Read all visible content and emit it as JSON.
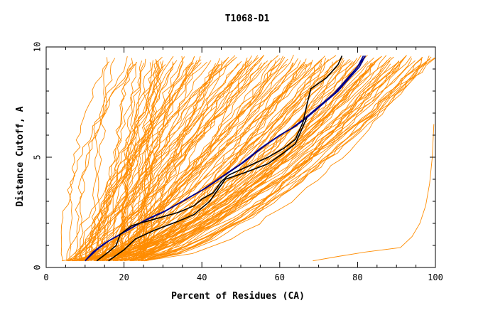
{
  "chart_data": {
    "type": "line",
    "title": "T1068-D1",
    "xlabel": "Percent of Residues (CA)",
    "ylabel": "Distance Cutoff, A",
    "xlim": [
      0,
      100
    ],
    "ylim": [
      0,
      10
    ],
    "x_ticks": [
      0,
      20,
      40,
      60,
      80,
      100
    ],
    "y_ticks": [
      0,
      5,
      10
    ],
    "x_tick_labels": [
      "0",
      "20",
      "40",
      "60",
      "80",
      "100"
    ],
    "y_tick_labels": [
      "0",
      "5",
      "10"
    ],
    "grid": false,
    "legend": "none",
    "colors": {
      "background_models": "#ff8c00",
      "highlight_blue": "#00008b",
      "highlight_black": "#000000"
    },
    "series": [
      {
        "group": "highlight_blue",
        "x": [
          10,
          12,
          15,
          20,
          25,
          30,
          35,
          40,
          45,
          50,
          55,
          60,
          63,
          66,
          70,
          74,
          77,
          80,
          82
        ],
        "y": [
          0.3,
          0.7,
          1.1,
          1.6,
          2.1,
          2.5,
          3.0,
          3.5,
          4.1,
          4.7,
          5.4,
          6.0,
          6.3,
          6.7,
          7.3,
          7.9,
          8.5,
          9.1,
          9.6
        ]
      },
      {
        "group": "highlight_blue",
        "x": [
          10,
          13,
          16,
          21,
          26,
          31,
          36,
          41,
          46,
          51,
          56,
          61,
          64,
          67,
          71,
          75,
          78,
          80.5,
          82
        ],
        "y": [
          0.3,
          0.8,
          1.2,
          1.7,
          2.2,
          2.6,
          3.1,
          3.6,
          4.2,
          4.8,
          5.5,
          6.1,
          6.4,
          6.8,
          7.4,
          8.0,
          8.6,
          9.1,
          9.6
        ]
      },
      {
        "group": "highlight_blue",
        "x": [
          10,
          12.5,
          15.5,
          20.5,
          25.5,
          30.5,
          35.5,
          40.5,
          45.5,
          50.5,
          55.5,
          60.5,
          63.5,
          66.5,
          70.5,
          74.5,
          77.5,
          80,
          81.5
        ],
        "y": [
          0.3,
          0.75,
          1.15,
          1.65,
          2.15,
          2.55,
          3.05,
          3.55,
          4.15,
          4.75,
          5.45,
          6.05,
          6.35,
          6.75,
          7.35,
          7.95,
          8.55,
          9.1,
          9.6
        ]
      },
      {
        "group": "highlight_black",
        "x": [
          13,
          16,
          18,
          19,
          22,
          28,
          34,
          38,
          40,
          43,
          45,
          47,
          52,
          57,
          61,
          64,
          66,
          67,
          68,
          72,
          75,
          76
        ],
        "y": [
          0.3,
          0.7,
          1.0,
          1.5,
          1.9,
          2.2,
          2.5,
          2.8,
          3.1,
          3.4,
          3.9,
          4.2,
          4.6,
          5.0,
          5.4,
          5.8,
          6.6,
          7.4,
          8.1,
          8.6,
          9.2,
          9.6
        ]
      },
      {
        "group": "highlight_black",
        "x": [
          16,
          20,
          23,
          28,
          34,
          38,
          40,
          42,
          44,
          46,
          51,
          57,
          61,
          64,
          65,
          66,
          67
        ],
        "y": [
          0.3,
          0.8,
          1.3,
          1.7,
          2.1,
          2.4,
          2.7,
          3.0,
          3.5,
          4.0,
          4.3,
          4.7,
          5.2,
          5.6,
          6.0,
          6.4,
          6.8
        ]
      }
    ]
  }
}
